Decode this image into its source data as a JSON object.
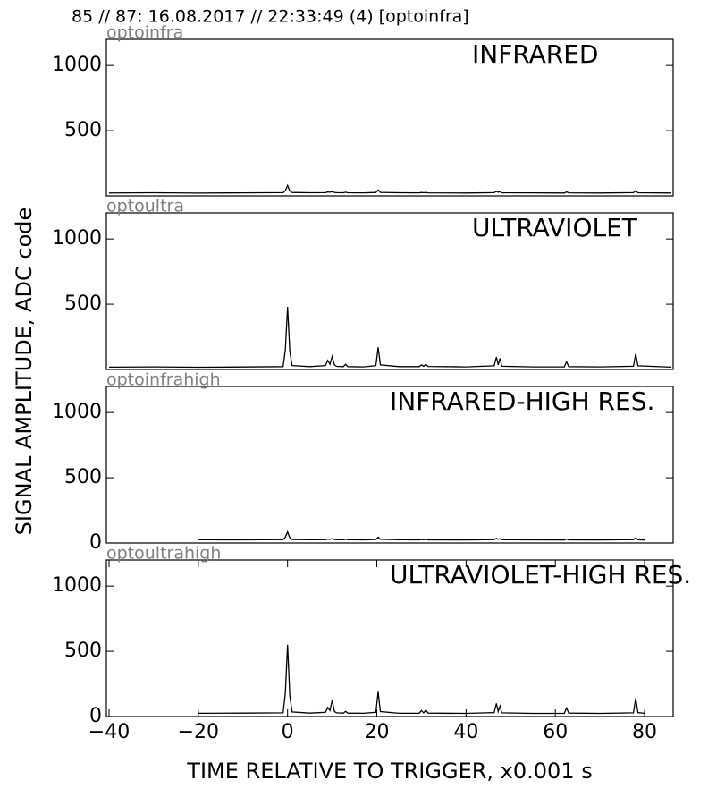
{
  "title": "85 // 87:   16.08.2017 // 22:33:49 (4)  [optoinfra]",
  "ylabel": "SIGNAL AMPLITUDE,  ADC code",
  "chart_data": [
    {
      "type": "line",
      "subtitle": "optoinfra",
      "annotation": "INFRARED",
      "color": "#000000",
      "x": [
        -40,
        -30,
        -20,
        -10,
        -1,
        -0.5,
        0,
        0.5,
        1,
        5,
        8.5,
        9,
        9.5,
        10,
        10.5,
        11,
        12.5,
        13,
        13.5,
        17,
        19.8,
        20.3,
        20.8,
        25,
        29.5,
        30,
        30.5,
        31,
        31.5,
        40,
        46.3,
        46.8,
        47.2,
        47.6,
        48,
        55,
        62,
        62.5,
        63,
        70,
        77.5,
        78,
        78.5,
        86
      ],
      "values": [
        22,
        24,
        21,
        23,
        25,
        40,
        80,
        38,
        26,
        24,
        25,
        30,
        28,
        32,
        27,
        25,
        24,
        28,
        24,
        23,
        26,
        45,
        27,
        24,
        23,
        26,
        24,
        27,
        23,
        22,
        25,
        35,
        28,
        33,
        24,
        23,
        22,
        30,
        23,
        22,
        25,
        40,
        24,
        22
      ],
      "xlim": [
        -40.6,
        86.4
      ],
      "ylim": [
        0,
        1200
      ],
      "yticks": [
        500,
        1000
      ]
    },
    {
      "type": "line",
      "subtitle": "optoultra",
      "annotation": "ULTRAVIOLET",
      "color": "#000000",
      "x": [
        -40,
        -30,
        -20,
        -10,
        -1,
        -0.5,
        0,
        0.5,
        1,
        5,
        8.5,
        9,
        9.5,
        10,
        10.5,
        11,
        12.5,
        13,
        13.5,
        17,
        19.8,
        20.3,
        20.8,
        25,
        29.5,
        30,
        30.5,
        31,
        31.5,
        40,
        46.3,
        46.8,
        47.2,
        47.6,
        48,
        55,
        62,
        62.5,
        63,
        70,
        77.5,
        78,
        78.5,
        86
      ],
      "values": [
        18,
        20,
        17,
        19,
        22,
        150,
        480,
        140,
        30,
        22,
        30,
        70,
        40,
        100,
        35,
        24,
        22,
        40,
        22,
        20,
        30,
        170,
        35,
        22,
        22,
        35,
        25,
        40,
        23,
        20,
        28,
        95,
        35,
        85,
        25,
        20,
        20,
        60,
        22,
        20,
        25,
        120,
        28,
        18
      ],
      "xlim": [
        -40.6,
        86.4
      ],
      "ylim": [
        0,
        1200
      ],
      "yticks": [
        500,
        1000
      ]
    },
    {
      "type": "line",
      "subtitle": "optoinfrahigh",
      "annotation": "INFRARED-HIGH RES.",
      "color": "#000000",
      "x": [
        -20,
        -10,
        -1,
        -0.5,
        0,
        0.5,
        1,
        5,
        8.5,
        9,
        9.5,
        10,
        10.5,
        11,
        12.5,
        13,
        13.5,
        17,
        19.8,
        20.3,
        20.8,
        25,
        29.5,
        30,
        30.5,
        31,
        31.5,
        40,
        46.3,
        46.8,
        47.2,
        47.6,
        48,
        55,
        62,
        62.5,
        63,
        70,
        77.5,
        78,
        78.5,
        80
      ],
      "values": [
        25,
        24,
        26,
        45,
        85,
        40,
        27,
        25,
        26,
        30,
        28,
        33,
        27,
        26,
        25,
        29,
        25,
        24,
        27,
        45,
        28,
        25,
        24,
        27,
        25,
        28,
        24,
        23,
        26,
        35,
        29,
        33,
        25,
        24,
        23,
        30,
        24,
        23,
        26,
        40,
        25,
        23
      ],
      "xlim": [
        -40.6,
        86.4
      ],
      "ylim": [
        0,
        1200
      ],
      "yticks": [
        0,
        500,
        1000
      ]
    },
    {
      "type": "line",
      "subtitle": "optoultrahigh",
      "annotation": "ULTRAVIOLET-HIGH RES.",
      "color": "#000000",
      "x": [
        -20,
        -10,
        -1,
        -0.5,
        0,
        0.5,
        1,
        5,
        8.5,
        9,
        9.5,
        10,
        10.5,
        11,
        12.5,
        13,
        13.5,
        17,
        19.8,
        20.3,
        20.8,
        25,
        29.5,
        30,
        30.5,
        31,
        31.5,
        40,
        46.3,
        46.8,
        47.2,
        47.6,
        48,
        55,
        62,
        62.5,
        63,
        70,
        77.5,
        78,
        78.5,
        80
      ],
      "values": [
        25,
        26,
        28,
        180,
        550,
        160,
        35,
        26,
        32,
        70,
        45,
        125,
        38,
        28,
        26,
        40,
        26,
        25,
        32,
        190,
        38,
        25,
        25,
        45,
        28,
        50,
        26,
        24,
        30,
        100,
        38,
        80,
        28,
        24,
        24,
        65,
        26,
        24,
        28,
        140,
        30,
        25
      ],
      "xlim": [
        -40.6,
        86.4
      ],
      "ylim": [
        0,
        1200
      ],
      "yticks": [
        0,
        500,
        1000
      ],
      "xticks": [
        {
          "value": -40,
          "label": "−40"
        },
        {
          "value": -20,
          "label": "−20"
        },
        0,
        20,
        40,
        60,
        80
      ],
      "xlabel": "TIME RELATIVE TO TRIGGER,   x0.001 s"
    }
  ]
}
